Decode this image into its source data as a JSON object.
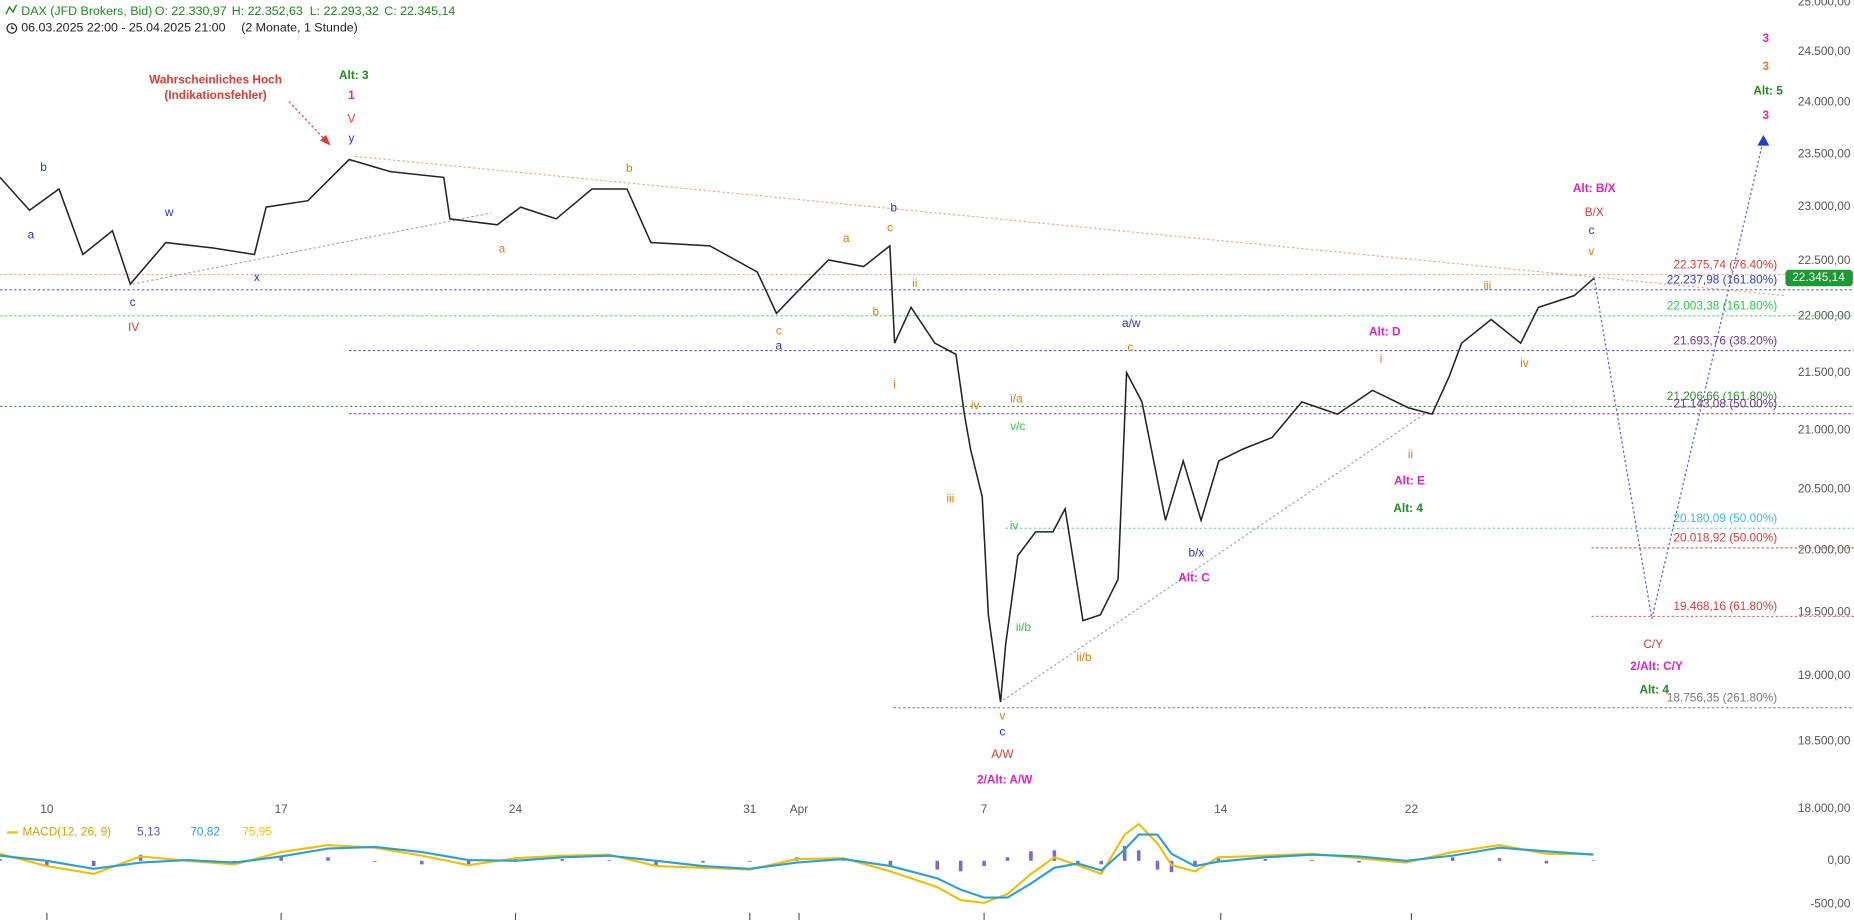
{
  "header": {
    "symbol": "DAX (JFD Brokers, Bid)",
    "open": "O: 22.330,97",
    "high": "H: 22.352,63",
    "low": "L: 22.293,32",
    "close": "C: 22.345,14",
    "range": "06.03.2025 22:00 - 25.04.2025 21:00",
    "span": "(2 Monate, 1 Stunde)"
  },
  "chart_data": [
    {
      "type": "line",
      "log_scale": true,
      "grid": false,
      "xlim": [
        0,
        38.1
      ],
      "ylim": [
        18000,
        25000
      ],
      "xticks": [
        {
          "value": 1,
          "label": "10"
        },
        {
          "value": 6,
          "label": "17"
        },
        {
          "value": 11,
          "label": "24"
        },
        {
          "value": 16,
          "label": "31"
        },
        {
          "value": 17.05,
          "label": "Apr"
        },
        {
          "value": 21,
          "label": "7"
        },
        {
          "value": 26.05,
          "label": "14"
        },
        {
          "value": 30.12,
          "label": "22"
        }
      ],
      "yticks": [
        {
          "value": 18000,
          "label": "18.000,00"
        },
        {
          "value": 18500,
          "label": "18.500,00"
        },
        {
          "value": 19000,
          "label": "19.000,00"
        },
        {
          "value": 19500,
          "label": "19.500,00"
        },
        {
          "value": 20000,
          "label": "20.000,00"
        },
        {
          "value": 20500,
          "label": "20.500,00"
        },
        {
          "value": 21000,
          "label": "21.000,00"
        },
        {
          "value": 21500,
          "label": "21.500,00"
        },
        {
          "value": 22000,
          "label": "22.000,00"
        },
        {
          "value": 22500,
          "label": "22.500,00"
        },
        {
          "value": 23000,
          "label": "23.000,00"
        },
        {
          "value": 23500,
          "label": "23.500,00"
        },
        {
          "value": 24000,
          "label": "24.000,00"
        },
        {
          "value": 24500,
          "label": "24.500,00"
        },
        {
          "value": 25000,
          "label": "25.000,00"
        }
      ],
      "series": [
        {
          "color": "#222222",
          "style": "solid",
          "x": [
            0,
            0.63,
            1.26,
            1.77,
            2.4,
            2.78,
            3.54,
            4.55,
            5.43,
            5.68,
            6.57,
            7.45,
            8.33,
            9.47,
            9.6,
            10.61,
            11.11,
            11.87,
            12.63,
            13.38,
            13.89,
            15.15,
            16.16,
            16.57,
            17.17,
            17.68,
            18.43,
            18.99,
            19.09,
            19.44,
            19.95,
            20.4,
            20.58,
            20.71,
            20.96,
            21.09,
            21.35,
            21.46,
            21.72,
            22.1,
            22.47,
            22.73,
            23.11,
            23.48,
            23.86,
            24.04,
            24.37,
            24.87,
            25.25,
            25.63,
            26.01,
            26.52,
            27.15,
            27.78,
            28.54,
            29.29,
            30.05,
            30.56,
            30.93,
            31.19,
            31.82,
            32.45,
            32.83,
            33.59,
            34.02
          ],
          "values": [
            23280,
            22970,
            23170,
            22560,
            22780,
            22290,
            22670,
            22620,
            22560,
            23000,
            23060,
            23450,
            23335,
            23280,
            22890,
            22835,
            23000,
            22890,
            23170,
            23170,
            22670,
            22640,
            22400,
            22025,
            22290,
            22510,
            22450,
            22640,
            21760,
            22080,
            21760,
            21660,
            21140,
            20840,
            20440,
            19480,
            18800,
            19245,
            19955,
            20150,
            20150,
            20340,
            19435,
            19480,
            19765,
            21500,
            21245,
            20245,
            20740,
            20245,
            20740,
            20840,
            20940,
            21245,
            21140,
            21345,
            21195,
            21140,
            21470,
            21760,
            21970,
            21760,
            22080,
            22185,
            22345.14
          ]
        },
        {
          "color": "#4a5fd8",
          "style": "dotted",
          "marker": "triangle",
          "x": [
            34.02,
            35.25,
            37.63
          ],
          "values": [
            22345.14,
            19450,
            23640
          ]
        }
      ],
      "trendlines": [
        {
          "color": "#f0a070",
          "x": [
            7.58,
            38.1
          ],
          "values": [
            23480,
            22185
          ]
        },
        {
          "color": "#9a9a9a",
          "x": [
            2.83,
            10.48
          ],
          "values": [
            22290,
            22945
          ]
        },
        {
          "color": "#9a9a9a",
          "x": [
            21.41,
            30.43
          ],
          "values": [
            18815,
            21150
          ]
        }
      ],
      "levels": [
        {
          "value": 22375.74,
          "label": "22.375,74 (76.40%)",
          "color": "#e03a30",
          "line_color": "#f0a070",
          "x_start": 0
        },
        {
          "value": 22237.98,
          "label": "22.237,98 (161.80%)",
          "color": "#2a3ad0",
          "line_color": "#2a3ad0",
          "x_start": 0
        },
        {
          "value": 22003.38,
          "label": "22.003,38 (161.80%)",
          "color": "#22cc44",
          "line_color": "#22cc44",
          "x_start": 0
        },
        {
          "value": 21693.76,
          "label": "21.693,76 (38.20%)",
          "color": "#7030a0",
          "line_color": "#7030a0",
          "x_start": 7.45
        },
        {
          "value": 21206.66,
          "label": "21.206,66 (161.80%)",
          "color": "#2e8b2e",
          "line_color": "#2e8b2e",
          "x_start": 0
        },
        {
          "value": 21143.08,
          "label": "21.143,08 (50.00%)",
          "color": "#7030a0",
          "line_color": "#7030a0",
          "x_start": 7.45
        },
        {
          "value": 20180.09,
          "label": "20.180,09 (50.00%)",
          "color": "#40b8e0",
          "line_color": "#40b8e0",
          "x_start": 21.46
        },
        {
          "value": 20018.92,
          "label": "20.018,92 (50.00%)",
          "color": "#e03a30",
          "line_color": "#e03a30",
          "x_start": 33.96
        },
        {
          "value": 19468.16,
          "label": "19.468,16 (61.80%)",
          "color": "#e03a30",
          "line_color": "#e03a30",
          "x_start": 33.96
        },
        {
          "value": 18756.35,
          "label": "18.756,35 (261.80%)",
          "color": "#777777",
          "line_color": "#777777",
          "x_start": 19.07
        }
      ],
      "last_price": {
        "value": 22345.14,
        "label": "22.345,14",
        "color": "#1a9a30"
      },
      "annotations": [
        {
          "text": "Wahrscheinliches Hoch",
          "x": 4.6,
          "y": 24220,
          "color": "#e03a30",
          "style": "bold",
          "arrow_x": 7.02,
          "arrow_y": 23600
        },
        {
          "text": "(Indikationsfehler)",
          "x": 4.6,
          "y": 24065,
          "color": "#e03a30",
          "style": "bold"
        },
        {
          "text": "Alt: 3",
          "x": 7.55,
          "y": 24265,
          "color": "#1e8c1e",
          "style": "major"
        },
        {
          "text": "1",
          "x": 7.5,
          "y": 24065,
          "color": "#e020c0",
          "style": "bold"
        },
        {
          "text": "V",
          "x": 7.5,
          "y": 23835,
          "color": "#e03a30",
          "style": "small"
        },
        {
          "text": "y",
          "x": 7.5,
          "y": 23650,
          "color": "#2233cc",
          "style": "small"
        },
        {
          "text": "b",
          "x": 0.93,
          "y": 23370,
          "color": "#2233cc",
          "style": "small"
        },
        {
          "text": "a",
          "x": 0.66,
          "y": 22735,
          "color": "#2233cc",
          "style": "small"
        },
        {
          "text": "c",
          "x": 2.83,
          "y": 22120,
          "color": "#2233cc",
          "style": "small"
        },
        {
          "text": "IV",
          "x": 2.85,
          "y": 21895,
          "color": "#e03a30",
          "style": "small"
        },
        {
          "text": "w",
          "x": 3.61,
          "y": 22945,
          "color": "#2233cc",
          "style": "small"
        },
        {
          "text": "x",
          "x": 5.48,
          "y": 22345,
          "color": "#2233cc",
          "style": "small"
        },
        {
          "text": "b",
          "x": 13.43,
          "y": 23360,
          "color": "#e07b00",
          "style": "small"
        },
        {
          "text": "a",
          "x": 10.71,
          "y": 22605,
          "color": "#e07b00",
          "style": "small"
        },
        {
          "text": "c",
          "x": 16.62,
          "y": 21865,
          "color": "#e07b00",
          "style": "small"
        },
        {
          "text": "a",
          "x": 16.62,
          "y": 21730,
          "color": "#2233cc",
          "style": "small"
        },
        {
          "text": "a",
          "x": 18.06,
          "y": 22705,
          "color": "#e07b00",
          "style": "small"
        },
        {
          "text": "b",
          "x": 19.07,
          "y": 22990,
          "color": "#2233cc",
          "style": "small"
        },
        {
          "text": "c",
          "x": 18.99,
          "y": 22800,
          "color": "#e07b00",
          "style": "small"
        },
        {
          "text": "b",
          "x": 18.69,
          "y": 22035,
          "color": "#e07b00",
          "style": "small"
        },
        {
          "text": "ii",
          "x": 19.52,
          "y": 22290,
          "color": "#e07b00",
          "style": "small"
        },
        {
          "text": "i",
          "x": 19.09,
          "y": 21390,
          "color": "#e07b00",
          "style": "small"
        },
        {
          "text": "iv",
          "x": 20.81,
          "y": 21210,
          "color": "#e07b00",
          "style": "small"
        },
        {
          "text": "iii",
          "x": 20.28,
          "y": 20420,
          "color": "#e07b00",
          "style": "small"
        },
        {
          "text": "i/a",
          "x": 21.69,
          "y": 21265,
          "color": "#e07b00",
          "style": "small"
        },
        {
          "text": "v/c",
          "x": 21.72,
          "y": 21030,
          "color": "#22cc44",
          "style": "small"
        },
        {
          "text": "iv",
          "x": 21.64,
          "y": 20195,
          "color": "#22cc44",
          "style": "small"
        },
        {
          "text": "ii/b",
          "x": 21.84,
          "y": 19375,
          "color": "#22cc44",
          "style": "small"
        },
        {
          "text": "ii/b",
          "x": 23.13,
          "y": 19140,
          "color": "#e07b00",
          "style": "small"
        },
        {
          "text": "v",
          "x": 21.39,
          "y": 18690,
          "color": "#e07b00",
          "style": "small"
        },
        {
          "text": "c",
          "x": 21.39,
          "y": 18570,
          "color": "#2233cc",
          "style": "small"
        },
        {
          "text": "A/W",
          "x": 21.39,
          "y": 18400,
          "color": "#e03a30",
          "style": "small"
        },
        {
          "text": "2/Alt: A/W",
          "x": 21.44,
          "y": 18210,
          "color": "#e020c0",
          "style": "bold"
        },
        {
          "text": "a/w",
          "x": 24.14,
          "y": 21930,
          "color": "#2233cc",
          "style": "small"
        },
        {
          "text": "c",
          "x": 24.12,
          "y": 21720,
          "color": "#e07b00",
          "style": "small"
        },
        {
          "text": "b/x",
          "x": 25.53,
          "y": 19975,
          "color": "#2233cc",
          "style": "small"
        },
        {
          "text": "Alt: C",
          "x": 25.48,
          "y": 19770,
          "color": "#e020c0",
          "style": "bold"
        },
        {
          "text": "Alt: D",
          "x": 29.55,
          "y": 21855,
          "color": "#e020c0",
          "style": "bold"
        },
        {
          "text": "i",
          "x": 29.47,
          "y": 21615,
          "color": "#e07b00",
          "style": "small"
        },
        {
          "text": "ii",
          "x": 30.1,
          "y": 20790,
          "color": "#e07b00",
          "style": "small"
        },
        {
          "text": "Alt: E",
          "x": 30.08,
          "y": 20570,
          "color": "#e020c0",
          "style": "bold"
        },
        {
          "text": "Alt: 4",
          "x": 30.05,
          "y": 20340,
          "color": "#1e8c1e",
          "style": "major"
        },
        {
          "text": "iii",
          "x": 31.74,
          "y": 22270,
          "color": "#e07b00",
          "style": "small"
        },
        {
          "text": "iv",
          "x": 32.53,
          "y": 21575,
          "color": "#e07b00",
          "style": "small"
        },
        {
          "text": "Alt: B/X",
          "x": 34.02,
          "y": 23170,
          "color": "#e020c0",
          "style": "bold"
        },
        {
          "text": "B/X",
          "x": 34.02,
          "y": 22945,
          "color": "#e03a30",
          "style": "small"
        },
        {
          "text": "c",
          "x": 33.96,
          "y": 22780,
          "color": "#2233cc",
          "style": "small"
        },
        {
          "text": "v",
          "x": 33.96,
          "y": 22585,
          "color": "#e07b00",
          "style": "small"
        },
        {
          "text": "C/Y",
          "x": 35.28,
          "y": 19245,
          "color": "#e03a30",
          "style": "small"
        },
        {
          "text": "2/Alt: C/Y",
          "x": 35.35,
          "y": 19070,
          "color": "#e020c0",
          "style": "bold"
        },
        {
          "text": "Alt: 4",
          "x": 35.3,
          "y": 18890,
          "color": "#1e8c1e",
          "style": "major"
        },
        {
          "text": "3",
          "x": 37.68,
          "y": 24630,
          "color": "#e020c0",
          "style": "big"
        },
        {
          "text": "3",
          "x": 37.68,
          "y": 24350,
          "color": "#f07a10",
          "style": "big"
        },
        {
          "text": "Alt: 5",
          "x": 37.73,
          "y": 24110,
          "color": "#1e8c1e",
          "style": "major"
        },
        {
          "text": "3",
          "x": 37.68,
          "y": 23870,
          "color": "#e020c0",
          "style": "bold"
        }
      ]
    },
    {
      "type": "line",
      "title": "MACD(12, 26, 9)",
      "title_color": "#d4a000",
      "xlim": [
        0,
        38.1
      ],
      "ylim": [
        -676,
        446
      ],
      "yticks": [
        {
          "value": 0,
          "label": "0,00"
        },
        {
          "value": -500,
          "label": "-500,00"
        }
      ],
      "x": [
        0,
        1,
        2,
        3,
        4,
        5,
        6,
        7,
        8,
        9,
        10,
        11,
        12,
        13,
        14,
        15,
        16,
        17,
        18,
        19,
        20,
        20.5,
        21,
        21.5,
        22,
        22.5,
        23,
        23.5,
        24,
        24.3,
        24.7,
        25,
        25.5,
        26,
        27,
        28,
        29,
        30,
        31,
        32,
        33,
        34
      ],
      "series": [
        {
          "type": "bar",
          "color": "#5a50d0",
          "value_label": "5,13",
          "values": [
            20,
            -60,
            -60,
            70,
            -10,
            -20,
            50,
            40,
            -10,
            -40,
            -60,
            30,
            20,
            10,
            -60,
            -20,
            -10,
            40,
            10,
            -60,
            -100,
            -120,
            -60,
            40,
            110,
            120,
            -20,
            -40,
            170,
            120,
            -100,
            -130,
            -60,
            50,
            20,
            10,
            -20,
            -20,
            40,
            30,
            -30,
            5.13
          ]
        },
        {
          "type": "line",
          "color": "#f0c000",
          "value_label": "75,95",
          "values": [
            80,
            -60,
            -150,
            50,
            0,
            -40,
            100,
            180,
            150,
            60,
            -50,
            30,
            60,
            70,
            -60,
            -80,
            -100,
            20,
            30,
            -120,
            -300,
            -450,
            -480,
            -380,
            -150,
            40,
            -50,
            -150,
            300,
            420,
            200,
            -50,
            -120,
            40,
            60,
            80,
            30,
            -20,
            100,
            180,
            80,
            75.95
          ]
        },
        {
          "type": "line",
          "color": "#2a9fd6",
          "value_label": "70,82",
          "values": [
            60,
            0,
            -90,
            -20,
            10,
            -20,
            50,
            140,
            160,
            100,
            10,
            0,
            40,
            60,
            0,
            -60,
            -90,
            -20,
            20,
            -60,
            -200,
            -330,
            -420,
            -420,
            -260,
            -80,
            -30,
            -110,
            130,
            300,
            300,
            80,
            -60,
            -10,
            40,
            70,
            50,
            0,
            60,
            150,
            110,
            70.82
          ]
        }
      ]
    }
  ]
}
